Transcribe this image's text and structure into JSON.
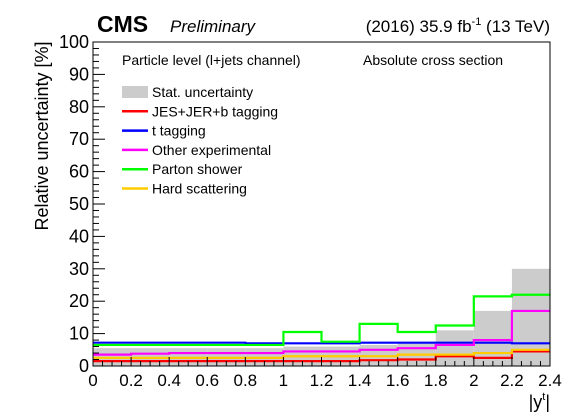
{
  "header": {
    "cms": "CMS",
    "preliminary": "Preliminary",
    "lumi_prefix": "(2016) 35.9 fb",
    "lumi_exp": "-1",
    "lumi_suffix": " (13 TeV)"
  },
  "annotations": {
    "channel": "Particle level (l+jets channel)",
    "section": "Absolute cross section"
  },
  "chart_data": {
    "type": "step",
    "title": "",
    "ylabel": "Relative uncertainty [%]",
    "xlabel_main": "|y",
    "xlabel_sup": "t",
    "xlabel_close": "|",
    "xlim": [
      0,
      2.4
    ],
    "ylim": [
      0,
      100
    ],
    "x_edges": [
      0,
      0.2,
      0.4,
      0.6,
      0.8,
      1.0,
      1.2,
      1.4,
      1.6,
      1.8,
      2.0,
      2.2,
      2.4
    ],
    "x_ticks": [
      {
        "value": 0,
        "label": "0"
      },
      {
        "value": 0.2,
        "label": "0.2"
      },
      {
        "value": 0.4,
        "label": "0.4"
      },
      {
        "value": 0.6,
        "label": "0.6"
      },
      {
        "value": 0.8,
        "label": "0.8"
      },
      {
        "value": 1.0,
        "label": "1"
      },
      {
        "value": 1.2,
        "label": "1.2"
      },
      {
        "value": 1.4,
        "label": "1.4"
      },
      {
        "value": 1.6,
        "label": "1.6"
      },
      {
        "value": 1.8,
        "label": "1.8"
      },
      {
        "value": 2.0,
        "label": "2"
      },
      {
        "value": 2.2,
        "label": "2.2"
      },
      {
        "value": 2.4,
        "label": "2.4"
      }
    ],
    "y_ticks": [
      {
        "value": 0,
        "label": "0"
      },
      {
        "value": 10,
        "label": "10"
      },
      {
        "value": 20,
        "label": "20"
      },
      {
        "value": 30,
        "label": "30"
      },
      {
        "value": 40,
        "label": "40"
      },
      {
        "value": 50,
        "label": "50"
      },
      {
        "value": 60,
        "label": "60"
      },
      {
        "value": 70,
        "label": "70"
      },
      {
        "value": 80,
        "label": "80"
      },
      {
        "value": 90,
        "label": "90"
      },
      {
        "value": 100,
        "label": "100"
      }
    ],
    "stat": {
      "name": "Stat. uncertainty",
      "color": "#cccccc",
      "values": [
        5.5,
        5.5,
        5.5,
        5.5,
        5.5,
        6.0,
        6.0,
        6.5,
        7.5,
        11.0,
        17.0,
        30.0
      ]
    },
    "series": [
      {
        "name": "JES+JER+b tagging",
        "color": "#ff0000",
        "values": [
          1.5,
          1.5,
          1.5,
          1.5,
          1.5,
          1.5,
          1.5,
          1.8,
          2.0,
          3.0,
          2.5,
          4.5
        ]
      },
      {
        "name": "t tagging",
        "color": "#0000ff",
        "values": [
          7.2,
          7.2,
          7.2,
          7.2,
          7.0,
          7.0,
          7.0,
          7.2,
          7.2,
          7.2,
          7.2,
          7.0
        ]
      },
      {
        "name": "Other experimental",
        "color": "#ff00ff",
        "values": [
          3.5,
          3.8,
          4.0,
          4.0,
          4.0,
          4.5,
          4.5,
          5.0,
          5.5,
          6.5,
          8.0,
          17.0
        ]
      },
      {
        "name": "Parton shower",
        "color": "#00ff00",
        "values": [
          6.5,
          6.5,
          6.5,
          6.5,
          6.5,
          10.5,
          7.5,
          13.0,
          10.5,
          12.5,
          21.5,
          22.0
        ]
      },
      {
        "name": "Hard scattering",
        "color": "#ffcc00",
        "values": [
          2.5,
          2.5,
          2.5,
          2.5,
          2.5,
          3.0,
          3.0,
          3.0,
          3.5,
          3.5,
          4.0,
          5.0
        ]
      }
    ],
    "legend_position": "top-left",
    "grid": false
  }
}
